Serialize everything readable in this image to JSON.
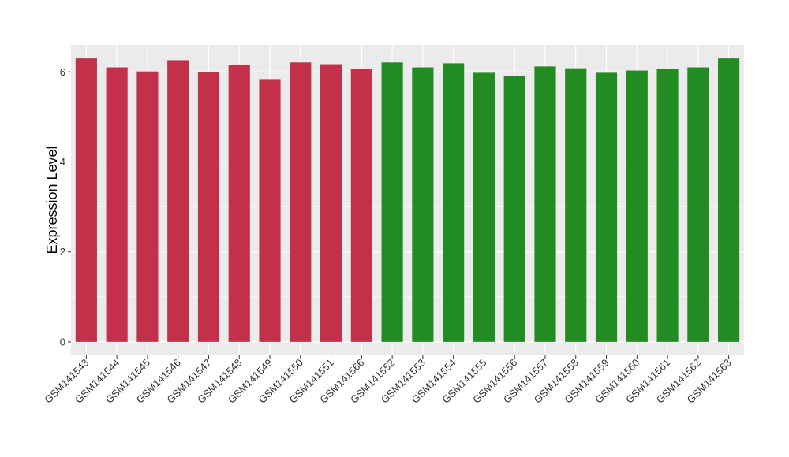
{
  "chart_data": {
    "type": "bar",
    "title": "",
    "xlabel": "",
    "ylabel": "Expression Level",
    "ylim": [
      -0.3,
      6.6
    ],
    "yticks": [
      0,
      2,
      4,
      6
    ],
    "grid": true,
    "legend": "none",
    "categories": [
      "GSM141543",
      "GSM141544",
      "GSM141545",
      "GSM141546",
      "GSM141547",
      "GSM141548",
      "GSM141549",
      "GSM141550",
      "GSM141551",
      "GSM141566",
      "GSM141552",
      "GSM141553",
      "GSM141554",
      "GSM141555",
      "GSM141556",
      "GSM141557",
      "GSM141558",
      "GSM141559",
      "GSM141560",
      "GSM141561",
      "GSM141562",
      "GSM141563"
    ],
    "values": [
      6.3,
      6.1,
      6.01,
      6.26,
      5.99,
      6.15,
      5.84,
      6.21,
      6.17,
      6.06,
      6.21,
      6.1,
      6.19,
      5.98,
      5.9,
      6.12,
      6.08,
      5.98,
      6.03,
      6.06,
      6.1,
      6.3
    ],
    "groups": [
      "red",
      "red",
      "red",
      "red",
      "red",
      "red",
      "red",
      "red",
      "red",
      "red",
      "green",
      "green",
      "green",
      "green",
      "green",
      "green",
      "green",
      "green",
      "green",
      "green",
      "green",
      "green"
    ],
    "colors": {
      "red": "#C3304A",
      "green": "#228B22",
      "panel": "#EBEBEB",
      "grid": "#FFFFFF"
    }
  }
}
